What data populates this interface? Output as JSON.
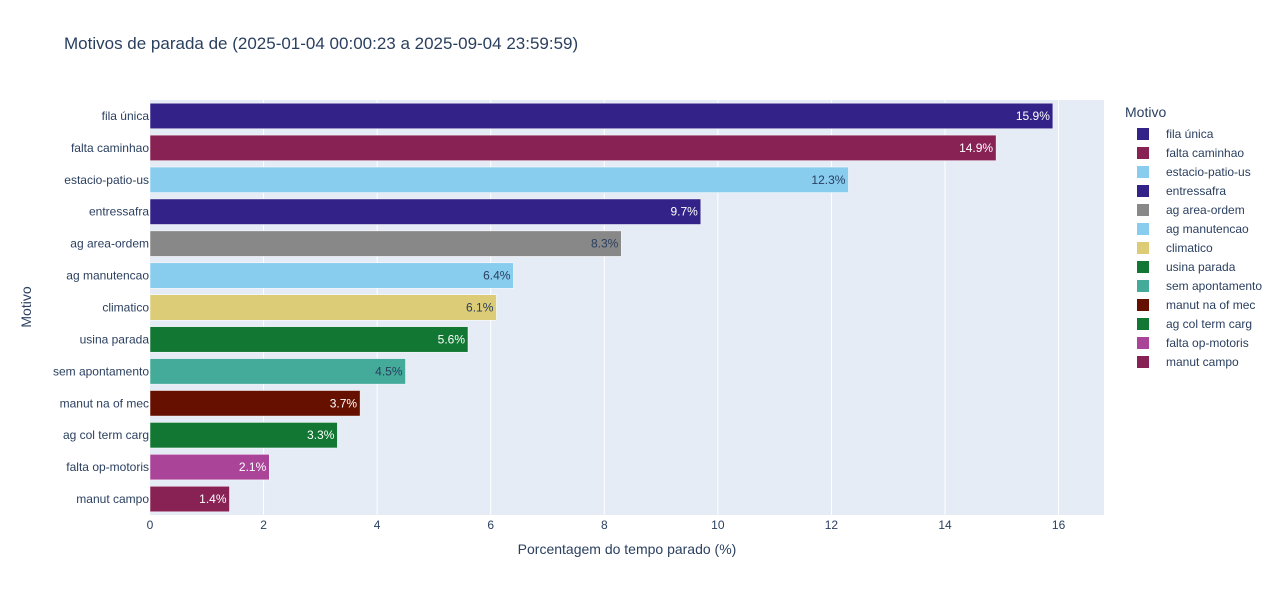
{
  "title": "Motivos de parada de (2025-01-04 00:00:23 a 2025-09-04 23:59:59)",
  "chart_data": {
    "type": "bar",
    "orientation": "horizontal",
    "title": "Motivos de parada de (2025-01-04 00:00:23 a 2025-09-04 23:59:59)",
    "xlabel": "Porcentagem do tempo parado (%)",
    "ylabel": "Motivo",
    "xlim": [
      0,
      16.8
    ],
    "x_ticks": [
      0,
      2,
      4,
      6,
      8,
      10,
      12,
      14,
      16
    ],
    "grid": true,
    "legend_title": "Motivo",
    "legend_position": "right",
    "categories": [
      "fila única",
      "falta caminhao",
      "estacio-patio-us",
      "entressafra",
      "ag area-ordem",
      "ag manutencao",
      "climatico",
      "usina  parada",
      "sem apontamento",
      "manut na of mec",
      "ag col term carg",
      "falta op-motoris",
      "manut campo"
    ],
    "values": [
      15.9,
      14.9,
      12.3,
      9.7,
      8.3,
      6.4,
      6.1,
      5.6,
      4.5,
      3.7,
      3.3,
      2.1,
      1.4
    ],
    "data_labels": [
      "15.9%",
      "14.9%",
      "12.3%",
      "9.7%",
      "8.3%",
      "6.4%",
      "6.1%",
      "5.6%",
      "4.5%",
      "3.7%",
      "3.3%",
      "2.1%",
      "1.4%"
    ],
    "colors": [
      "#332288",
      "#882255",
      "#88CCEE",
      "#332288",
      "#888888",
      "#88CCEE",
      "#DDCC77",
      "#117733",
      "#44AA99",
      "#661100",
      "#117733",
      "#AA4499",
      "#882255"
    ],
    "label_colors": [
      "#ffffff",
      "#ffffff",
      "#2a3f5f",
      "#ffffff",
      "#2a3f5f",
      "#2a3f5f",
      "#2a3f5f",
      "#ffffff",
      "#2a3f5f",
      "#ffffff",
      "#ffffff",
      "#ffffff",
      "#ffffff"
    ]
  }
}
